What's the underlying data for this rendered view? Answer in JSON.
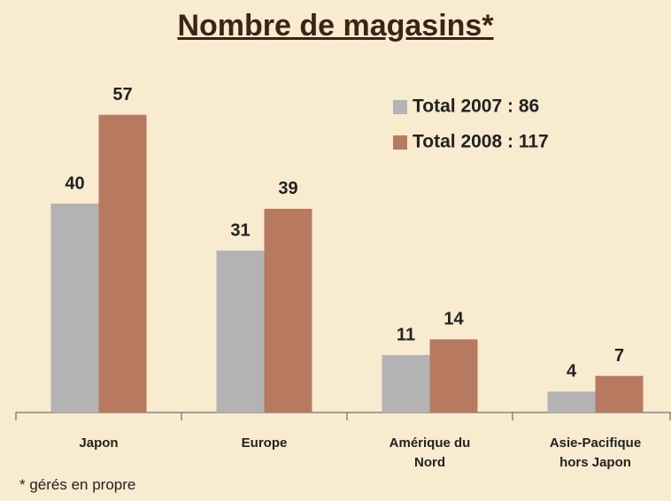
{
  "chart_data": {
    "type": "bar",
    "title": "Nombre de magasins*",
    "categories": [
      "Japon",
      "Europe",
      "Amérique du Nord",
      "Asie-Pacifique hors Japon"
    ],
    "series": [
      {
        "name": "Total 2007 : 86",
        "color": "#b3b3b3",
        "values": [
          40,
          31,
          11,
          4
        ]
      },
      {
        "name": "Total 2008 : 117",
        "color": "#b77a61",
        "values": [
          57,
          39,
          14,
          7
        ]
      }
    ],
    "ylim": [
      0,
      70
    ],
    "legend": "upper right",
    "footnote": "* gérés en propre"
  }
}
